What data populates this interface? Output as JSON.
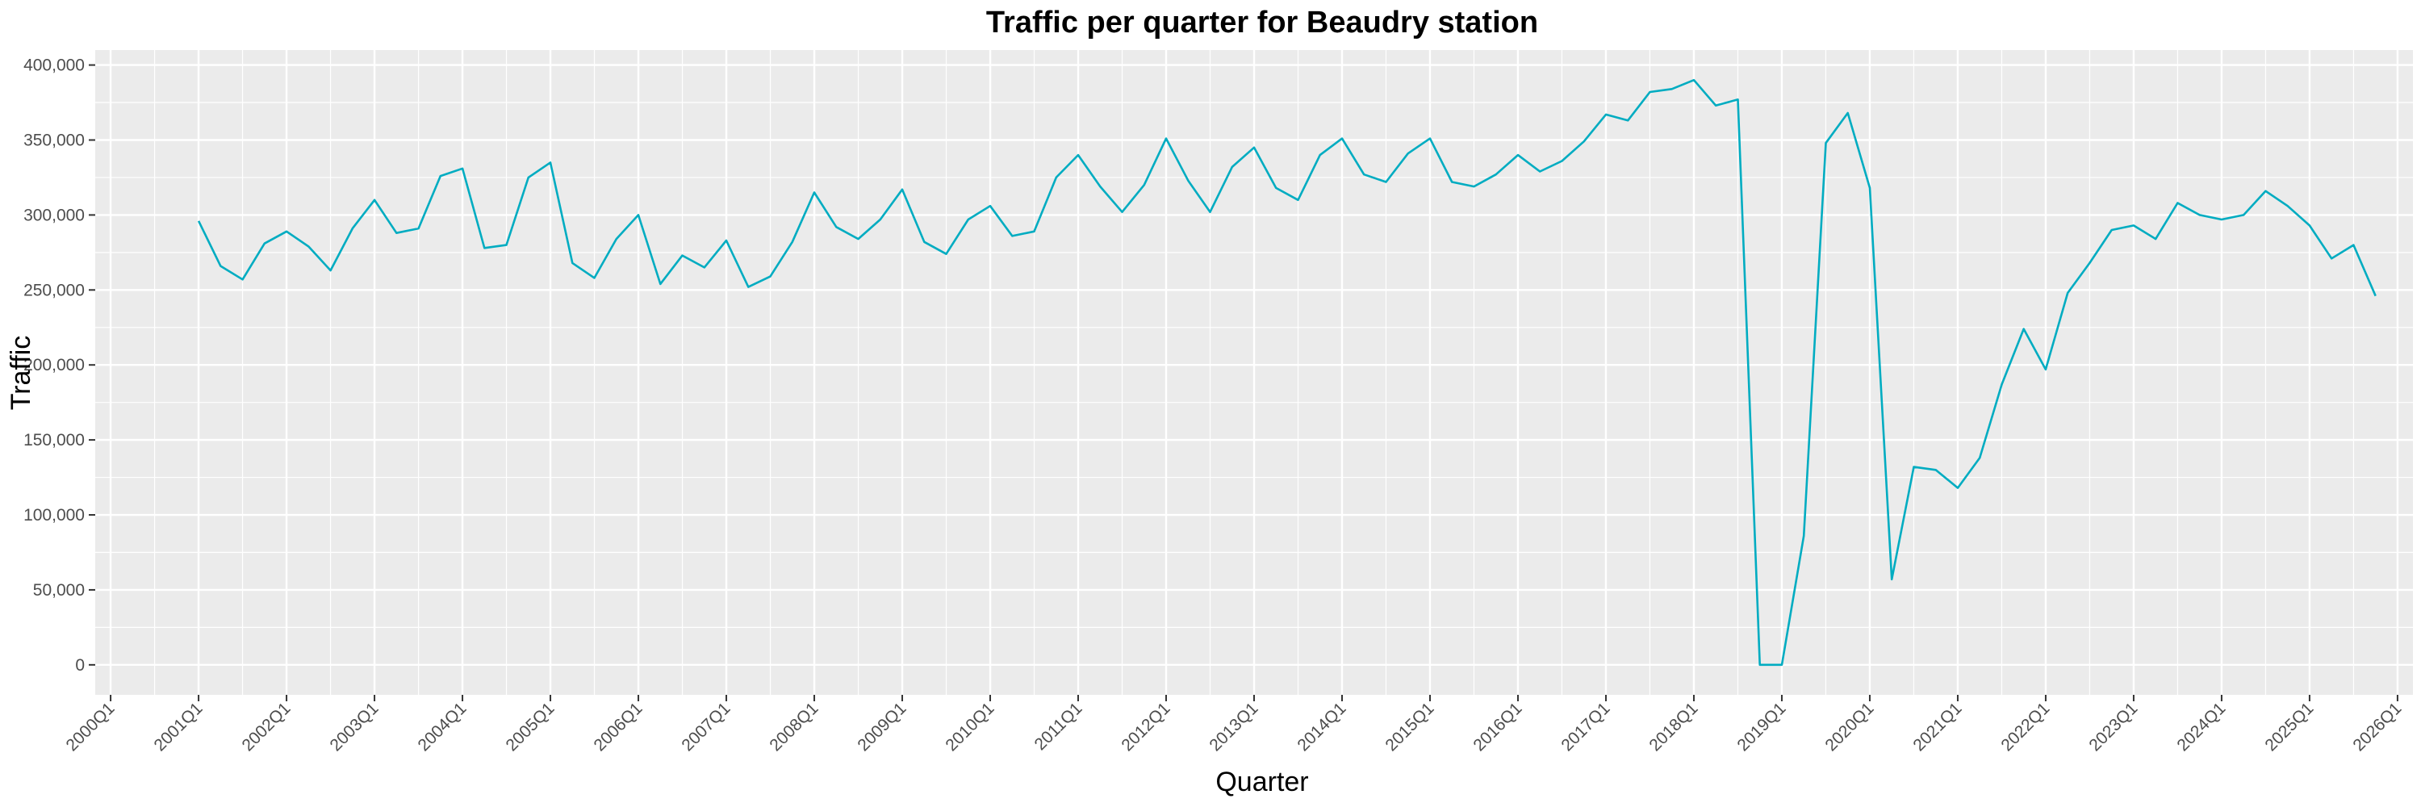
{
  "chart_data": {
    "type": "line",
    "title": "Traffic per quarter for Beaudry station",
    "xlabel": "Quarter",
    "ylabel": "Traffic",
    "x_tick_labels": [
      "2000Q1",
      "2001Q1",
      "2002Q1",
      "2003Q1",
      "2004Q1",
      "2005Q1",
      "2006Q1",
      "2007Q1",
      "2008Q1",
      "2009Q1",
      "2010Q1",
      "2011Q1",
      "2012Q1",
      "2013Q1",
      "2014Q1",
      "2015Q1",
      "2016Q1",
      "2017Q1",
      "2018Q1",
      "2019Q1",
      "2020Q1",
      "2021Q1",
      "2022Q1",
      "2023Q1",
      "2024Q1",
      "2025Q1",
      "2026Q1"
    ],
    "y_ticks": [
      0,
      50000,
      100000,
      150000,
      200000,
      250000,
      300000,
      350000,
      400000
    ],
    "y_tick_labels": [
      "0",
      "50,000",
      "100,000",
      "150,000",
      "200,000",
      "250,000",
      "300,000",
      "350,000",
      "400,000"
    ],
    "ylim": [
      -20000,
      410000
    ],
    "xlim": [
      "2000Q1",
      "2026Q1"
    ],
    "grid": true,
    "line_color": "#00acc1",
    "panel_color": "#ebebeb",
    "grid_color": "#ffffff",
    "series": [
      {
        "x": [
          "2001Q1",
          "2001Q2",
          "2001Q3",
          "2001Q4",
          "2002Q1",
          "2002Q2",
          "2002Q3",
          "2002Q4",
          "2003Q1",
          "2003Q2",
          "2003Q3",
          "2003Q4",
          "2004Q1",
          "2004Q2",
          "2004Q3",
          "2004Q4",
          "2005Q1",
          "2005Q2",
          "2005Q3",
          "2005Q4",
          "2006Q1",
          "2006Q2",
          "2006Q3",
          "2006Q4",
          "2007Q1",
          "2007Q2",
          "2007Q3",
          "2007Q4",
          "2008Q1",
          "2008Q2",
          "2008Q3",
          "2008Q4",
          "2009Q1",
          "2009Q2",
          "2009Q3",
          "2009Q4",
          "2010Q1",
          "2010Q2",
          "2010Q3",
          "2010Q4",
          "2011Q1",
          "2011Q2",
          "2011Q3",
          "2011Q4",
          "2012Q1",
          "2012Q2",
          "2012Q3",
          "2012Q4",
          "2013Q1",
          "2013Q2",
          "2013Q3",
          "2013Q4",
          "2014Q1",
          "2014Q2",
          "2014Q3",
          "2014Q4",
          "2015Q1",
          "2015Q2",
          "2015Q3",
          "2015Q4",
          "2016Q1",
          "2016Q2",
          "2016Q3",
          "2016Q4",
          "2017Q1",
          "2017Q2",
          "2017Q3",
          "2017Q4",
          "2018Q1",
          "2018Q2",
          "2018Q3",
          "2018Q4",
          "2019Q1",
          "2019Q2",
          "2019Q3",
          "2019Q4",
          "2020Q1",
          "2020Q2",
          "2020Q3",
          "2020Q4",
          "2021Q1",
          "2021Q2",
          "2021Q3",
          "2021Q4",
          "2022Q1",
          "2022Q2",
          "2022Q3",
          "2022Q4",
          "2023Q1",
          "2023Q2",
          "2023Q3",
          "2023Q4",
          "2024Q1",
          "2024Q2",
          "2024Q3",
          "2024Q4",
          "2025Q1",
          "2025Q2",
          "2025Q3",
          "2025Q4"
        ],
        "values": [
          296000,
          266000,
          257000,
          281000,
          289000,
          279000,
          263000,
          291000,
          310000,
          288000,
          291000,
          326000,
          331000,
          278000,
          280000,
          325000,
          335000,
          268000,
          258000,
          284000,
          300000,
          254000,
          273000,
          265000,
          283000,
          252000,
          259000,
          282000,
          315000,
          292000,
          284000,
          297000,
          317000,
          282000,
          274000,
          297000,
          306000,
          286000,
          289000,
          325000,
          340000,
          319000,
          302000,
          320000,
          351000,
          323000,
          302000,
          332000,
          345000,
          318000,
          310000,
          340000,
          351000,
          327000,
          322000,
          341000,
          351000,
          322000,
          319000,
          327000,
          340000,
          329000,
          336000,
          349000,
          367000,
          363000,
          382000,
          384000,
          390000,
          373000,
          377000,
          0,
          0,
          86000,
          348000,
          368000,
          318000,
          57000,
          132000,
          130000,
          118000,
          138000,
          187000,
          224000,
          197000,
          248000,
          268000,
          290000,
          293000,
          284000,
          308000,
          300000,
          297000,
          300000,
          316000,
          306000,
          293000,
          271000,
          280000,
          246000
        ]
      }
    ]
  }
}
